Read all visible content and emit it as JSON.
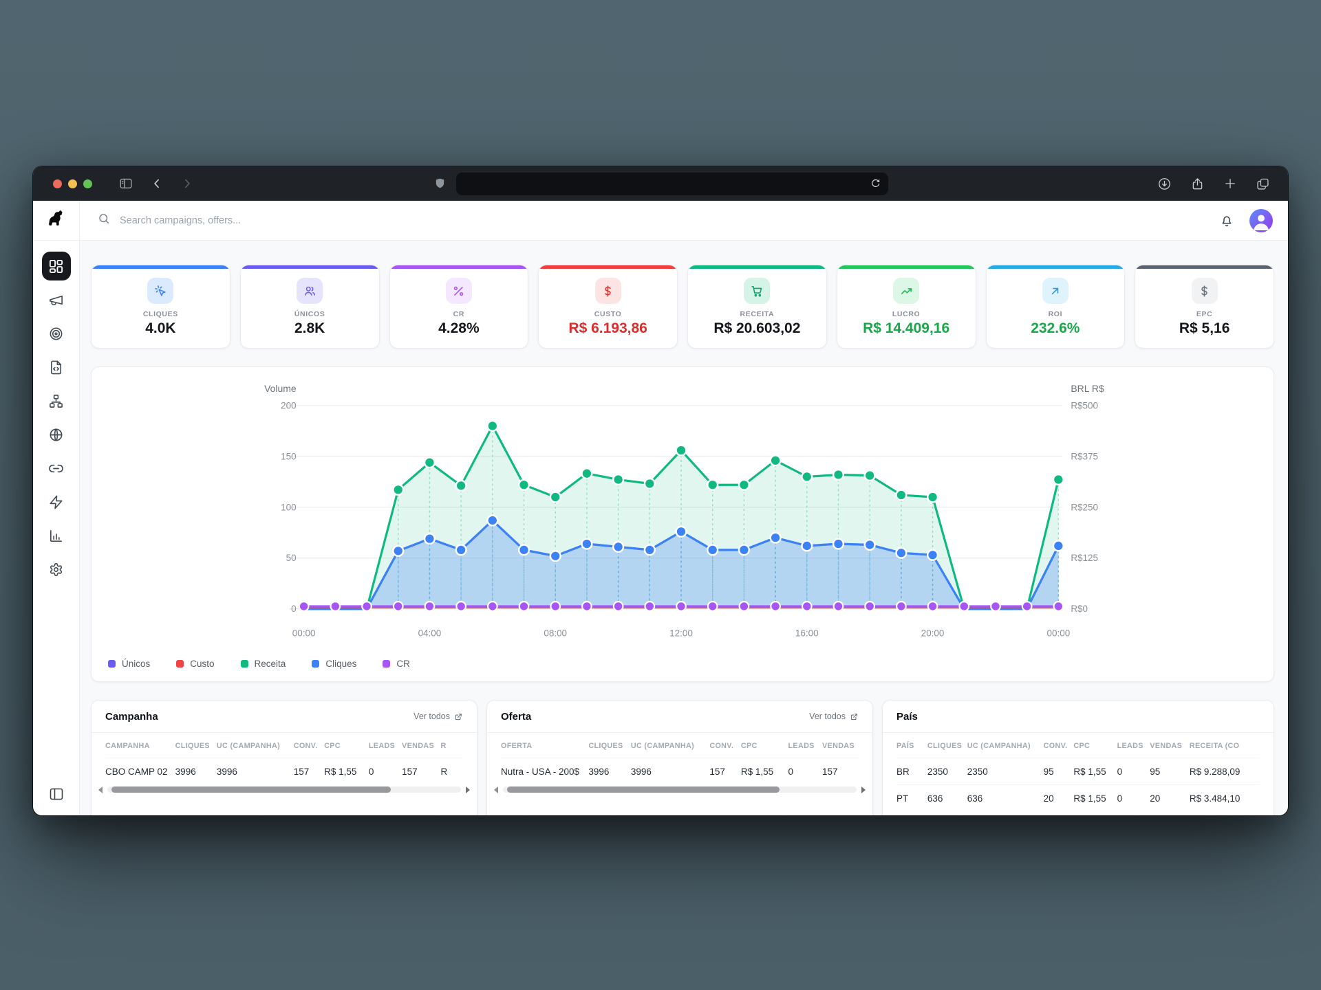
{
  "browser": {
    "address_bar_value": "",
    "traffic_lights": [
      "#ec6a5e",
      "#f4bf50",
      "#61c454"
    ]
  },
  "header": {
    "search_placeholder": "Search campaigns, offers..."
  },
  "sidebar": {
    "items": [
      {
        "label": "dashboard",
        "icon": "layout-dashboard",
        "active": true
      },
      {
        "label": "campaigns",
        "icon": "megaphone",
        "active": false
      },
      {
        "label": "offers",
        "icon": "target",
        "active": false
      },
      {
        "label": "landing-pages",
        "icon": "file-code",
        "active": false
      },
      {
        "label": "flows",
        "icon": "sitemap",
        "active": false
      },
      {
        "label": "domains",
        "icon": "globe",
        "active": false
      },
      {
        "label": "links",
        "icon": "link",
        "active": false
      },
      {
        "label": "automation",
        "icon": "zap",
        "active": false
      },
      {
        "label": "reports",
        "icon": "bar-chart",
        "active": false
      },
      {
        "label": "settings",
        "icon": "settings",
        "active": false
      }
    ]
  },
  "metric_cards": [
    {
      "id": "cliques",
      "label": "CLIQUES",
      "value": "4.0K",
      "accent": "#3b82f6",
      "chip_bg": "#dbeafe",
      "icon_color": "#3b82f6",
      "icon": "cursor-click"
    },
    {
      "id": "unicos",
      "label": "ÚNICOS",
      "value": "2.8K",
      "accent": "#6a5cf0",
      "chip_bg": "#e6e3fc",
      "icon_color": "#6a5cf0",
      "icon": "users"
    },
    {
      "id": "cr",
      "label": "CR",
      "value": "4.28%",
      "accent": "#a855f7",
      "chip_bg": "#f3e8ff",
      "icon_color": "#a855f7",
      "icon": "percent"
    },
    {
      "id": "custo",
      "label": "CUSTO",
      "value": "R$ 6.193,86",
      "accent": "#ef3e3e",
      "chip_bg": "#fde4e4",
      "icon_color": "#e23535",
      "icon": "dollar",
      "value_color": "#e02b2b"
    },
    {
      "id": "receita",
      "label": "RECEITA",
      "value": "R$ 20.603,02",
      "accent": "#10b981",
      "chip_bg": "#d5f3e6",
      "icon_color": "#0ea371",
      "icon": "cart"
    },
    {
      "id": "lucro",
      "label": "LUCRO",
      "value": "R$ 14.409,16",
      "accent": "#22c55e",
      "chip_bg": "#dcf7e6",
      "icon_color": "#1db954",
      "icon": "trending-up",
      "value_color": "#18a849"
    },
    {
      "id": "roi",
      "label": "ROI",
      "value": "232.6%",
      "accent": "#27a9e1",
      "chip_bg": "#dff3fc",
      "icon_color": "#1d9bf0",
      "icon": "arrow-up-right",
      "value_color": "#18a849"
    },
    {
      "id": "epc",
      "label": "EPC",
      "value": "R$ 5,16",
      "accent": "#5b6470",
      "chip_bg": "#f1f2f4",
      "icon_color": "#6b7280",
      "icon": "dollar"
    }
  ],
  "chart_data": {
    "type": "area",
    "left_axis_title": "Volume",
    "right_axis_title": "BRL R$",
    "left_ticks": [
      0,
      50,
      100,
      150,
      200
    ],
    "right_tick_labels": [
      "R$0",
      "R$125",
      "R$250",
      "R$375",
      "R$500"
    ],
    "left_range": [
      0,
      200
    ],
    "right_range": [
      0,
      500
    ],
    "x_tick_labels": [
      "00:00",
      "04:00",
      "08:00",
      "12:00",
      "16:00",
      "20:00",
      "00:00"
    ],
    "x_points_hourly": 25,
    "grid": true,
    "legend_position": "bottom-left",
    "series": [
      {
        "name": "Únicos",
        "color": "#6a5cf0",
        "axis": "left",
        "values": [
          0,
          0,
          0,
          57,
          69,
          58,
          87,
          58,
          52,
          64,
          61,
          58,
          76,
          58,
          58,
          70,
          62,
          64,
          63,
          55,
          53,
          0,
          0,
          0,
          62
        ]
      },
      {
        "name": "Custo",
        "color": "#ef4444",
        "axis": "left",
        "values": [
          1.5,
          1.5,
          1.5,
          1.5,
          1.5,
          1.5,
          1.5,
          1.5,
          1.5,
          1.5,
          1.5,
          1.5,
          1.5,
          1.5,
          1.5,
          1.5,
          1.5,
          1.5,
          1.5,
          1.5,
          1.5,
          1.5,
          1.5,
          1.5,
          1.5
        ]
      },
      {
        "name": "Receita",
        "color": "#10b981",
        "axis": "right",
        "values": [
          0,
          0,
          0,
          293,
          360,
          303,
          450,
          305,
          275,
          333,
          318,
          308,
          390,
          305,
          305,
          365,
          325,
          330,
          328,
          280,
          275,
          0,
          0,
          0,
          318
        ]
      },
      {
        "name": "Cliques",
        "color": "#3b82f6",
        "axis": "left",
        "values": [
          0,
          0,
          0,
          57,
          69,
          58,
          87,
          58,
          52,
          64,
          61,
          58,
          76,
          58,
          58,
          70,
          62,
          64,
          63,
          55,
          53,
          0,
          0,
          0,
          62
        ]
      },
      {
        "name": "CR",
        "color": "#a855f7",
        "axis": "left",
        "values": [
          2.5,
          2.5,
          2.5,
          2.5,
          2.5,
          2.5,
          2.5,
          2.5,
          2.5,
          2.5,
          2.5,
          2.5,
          2.5,
          2.5,
          2.5,
          2.5,
          2.5,
          2.5,
          2.5,
          2.5,
          2.5,
          2.5,
          2.5,
          2.5,
          2.5
        ]
      }
    ],
    "legend": [
      {
        "label": "Únicos",
        "color": "#6a5cf0"
      },
      {
        "label": "Custo",
        "color": "#ef4444"
      },
      {
        "label": "Receita",
        "color": "#10b981"
      },
      {
        "label": "Cliques",
        "color": "#3b82f6"
      },
      {
        "label": "CR",
        "color": "#a855f7"
      }
    ]
  },
  "tables": [
    {
      "id": "campanha",
      "title": "Campanha",
      "link_label": "Ver todos",
      "headers": [
        "CAMPANHA",
        "CLIQUES",
        "UC (CAMPANHA)",
        "CONV.",
        "CPC",
        "LEADS",
        "VENDAS",
        "R"
      ],
      "rows": [
        [
          "CBO CAMP 02",
          "3996",
          "3996",
          "157",
          "R$ 1,55",
          "0",
          "157",
          "R"
        ]
      ],
      "has_scrollbar": true,
      "thumb_pct": 79
    },
    {
      "id": "oferta",
      "title": "Oferta",
      "link_label": "Ver todos",
      "headers": [
        "OFERTA",
        "CLIQUES",
        "UC (CAMPANHA)",
        "CONV.",
        "CPC",
        "LEADS",
        "VENDAS"
      ],
      "rows": [
        [
          "Nutra - USA - 200$",
          "3996",
          "3996",
          "157",
          "R$ 1,55",
          "0",
          "157"
        ]
      ],
      "has_scrollbar": true,
      "thumb_pct": 77
    },
    {
      "id": "pais",
      "title": "País",
      "headers": [
        "PAÍS",
        "CLIQUES",
        "UC (CAMPANHA)",
        "CONV.",
        "CPC",
        "LEADS",
        "VENDAS",
        "RECEITA (CO"
      ],
      "rows": [
        [
          "BR",
          "2350",
          "2350",
          "95",
          "R$ 1,55",
          "0",
          "95",
          "R$ 9.288,09"
        ],
        [
          "PT",
          "636",
          "636",
          "20",
          "R$ 1,55",
          "0",
          "20",
          "R$ 3.484,10"
        ]
      ],
      "has_scrollbar": false
    }
  ]
}
